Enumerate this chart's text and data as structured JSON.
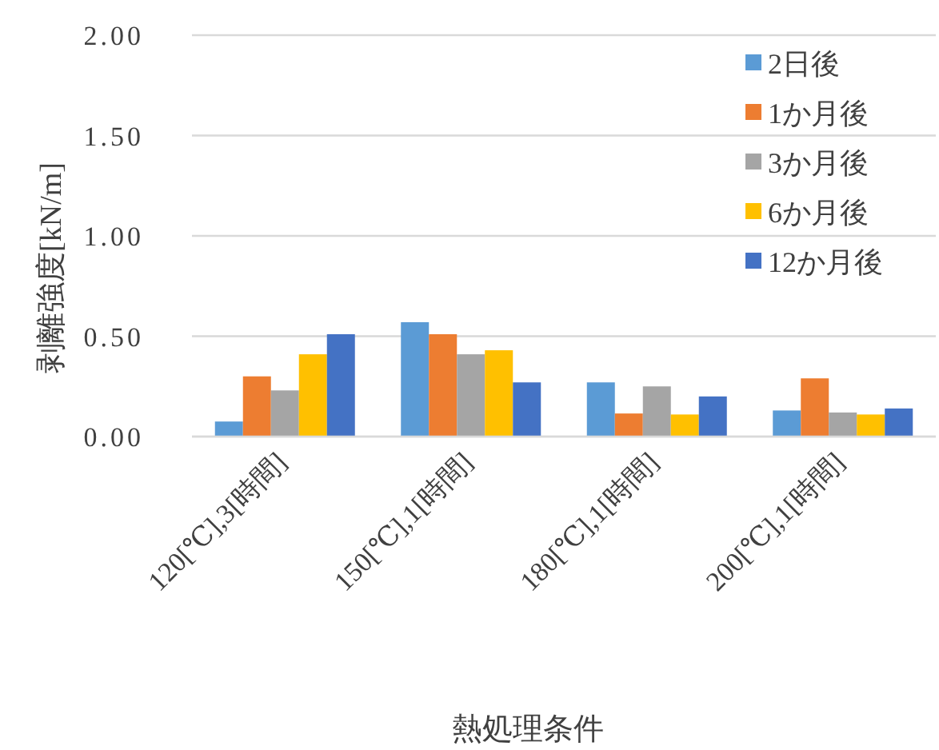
{
  "chart_data": {
    "type": "bar",
    "xlabel": "熱処理条件",
    "ylabel": "剥離強度[kN/m]",
    "categories": [
      "120[℃],3[時間]",
      "150[℃],1[時間]",
      "180[℃],1[時間]",
      "200[℃],1[時間]"
    ],
    "series": [
      {
        "name": "2日後",
        "color": "#5b9bd5",
        "values": [
          0.075,
          0.57,
          0.27,
          0.13
        ]
      },
      {
        "name": "1か月後",
        "color": "#ed7d31",
        "values": [
          0.3,
          0.51,
          0.115,
          0.29
        ]
      },
      {
        "name": "3か月後",
        "color": "#a5a5a5",
        "values": [
          0.23,
          0.41,
          0.25,
          0.12
        ]
      },
      {
        "name": "6か月後",
        "color": "#ffc000",
        "values": [
          0.41,
          0.43,
          0.11,
          0.11
        ]
      },
      {
        "name": "12か月後",
        "color": "#4472c4",
        "values": [
          0.51,
          0.27,
          0.2,
          0.14
        ]
      }
    ],
    "ylim": [
      0,
      2
    ],
    "yticks": [
      {
        "value": 0,
        "label": "0.00"
      },
      {
        "value": 0.5,
        "label": "0.50"
      },
      {
        "value": 1,
        "label": "1.00"
      },
      {
        "value": 1.5,
        "label": "1.50"
      },
      {
        "value": 2,
        "label": "2.00"
      }
    ],
    "grid": "y",
    "legend": "top right"
  }
}
